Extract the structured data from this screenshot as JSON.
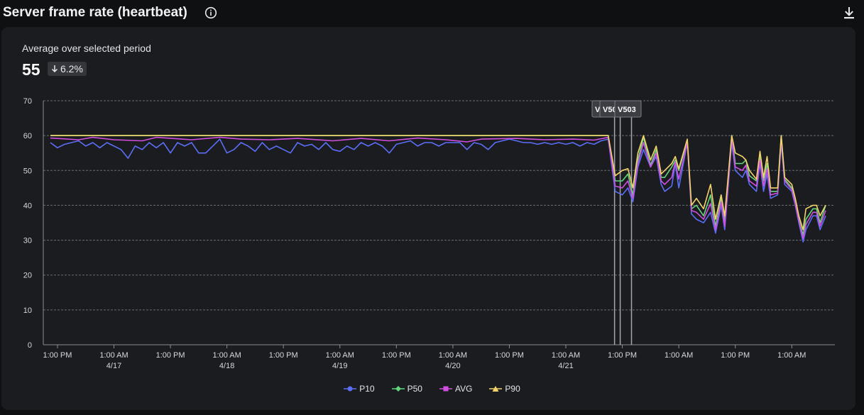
{
  "header": {
    "title": "Server frame rate (heartbeat)",
    "info_icon": "info-icon",
    "download_icon": "download-icon"
  },
  "summary": {
    "label": "Average over selected period",
    "value": "55",
    "delta": "6.2%",
    "delta_direction": "down"
  },
  "chart_data": {
    "type": "line",
    "title": "Server frame rate (heartbeat)",
    "ylim": [
      0,
      70
    ],
    "yticks": [
      0,
      10,
      20,
      30,
      40,
      50,
      60,
      70
    ],
    "grid": true,
    "legend_position": "bottom-center",
    "xlim": [
      0,
      110
    ],
    "x_ticks": [
      {
        "x": 1,
        "label": "1:00 PM",
        "sublabel": ""
      },
      {
        "x": 9,
        "label": "1:00 AM",
        "sublabel": "4/17"
      },
      {
        "x": 17,
        "label": "1:00 PM",
        "sublabel": ""
      },
      {
        "x": 25,
        "label": "1:00 AM",
        "sublabel": "4/18"
      },
      {
        "x": 33,
        "label": "1:00 PM",
        "sublabel": ""
      },
      {
        "x": 41,
        "label": "1:00 AM",
        "sublabel": "4/19"
      },
      {
        "x": 49,
        "label": "1:00 PM",
        "sublabel": ""
      },
      {
        "x": 57,
        "label": "1:00 AM",
        "sublabel": "4/20"
      },
      {
        "x": 65,
        "label": "1:00 PM",
        "sublabel": ""
      },
      {
        "x": 73,
        "label": "1:00 AM",
        "sublabel": "4/21"
      },
      {
        "x": 81,
        "label": "1:00 PM",
        "sublabel": ""
      },
      {
        "x": 89,
        "label": "1:00 AM",
        "sublabel": ""
      },
      {
        "x": 97,
        "label": "1:00 PM",
        "sublabel": ""
      },
      {
        "x": 105,
        "label": "1:00 AM",
        "sublabel": ""
      }
    ],
    "annotations": [
      {
        "x": 79.9,
        "label": "V"
      },
      {
        "x": 80.7,
        "label": "V50"
      },
      {
        "x": 82.3,
        "label": "V503"
      }
    ],
    "series": [
      {
        "name": "P10",
        "color": "#5b6ef5",
        "points": [
          [
            0,
            58
          ],
          [
            1,
            56.5
          ],
          [
            2,
            57.5
          ],
          [
            3,
            58
          ],
          [
            4,
            58.5
          ],
          [
            5,
            57
          ],
          [
            6,
            58
          ],
          [
            7,
            56.5
          ],
          [
            8,
            58
          ],
          [
            9,
            57
          ],
          [
            10,
            56
          ],
          [
            11,
            53.5
          ],
          [
            12,
            57
          ],
          [
            13,
            56
          ],
          [
            14,
            58
          ],
          [
            15,
            56.5
          ],
          [
            16,
            58
          ],
          [
            17,
            55
          ],
          [
            18,
            58
          ],
          [
            19,
            57
          ],
          [
            20,
            58
          ],
          [
            21,
            55
          ],
          [
            22,
            55
          ],
          [
            23,
            57
          ],
          [
            24,
            59
          ],
          [
            25,
            55
          ],
          [
            26,
            56
          ],
          [
            27,
            58
          ],
          [
            28,
            57
          ],
          [
            29,
            55.5
          ],
          [
            30,
            58
          ],
          [
            31,
            56
          ],
          [
            32,
            57
          ],
          [
            33,
            56
          ],
          [
            34,
            55
          ],
          [
            35,
            58
          ],
          [
            36,
            57
          ],
          [
            37,
            57.5
          ],
          [
            38,
            56
          ],
          [
            39,
            58
          ],
          [
            40,
            56
          ],
          [
            41,
            55.5
          ],
          [
            42,
            57
          ],
          [
            43,
            56
          ],
          [
            44,
            58
          ],
          [
            45,
            57
          ],
          [
            46,
            58
          ],
          [
            47,
            57
          ],
          [
            48,
            55
          ],
          [
            49,
            57.5
          ],
          [
            50,
            58
          ],
          [
            51,
            58.5
          ],
          [
            52,
            57
          ],
          [
            53,
            58
          ],
          [
            54,
            58
          ],
          [
            55,
            57
          ],
          [
            56,
            58
          ],
          [
            57,
            58
          ],
          [
            58,
            58
          ],
          [
            59,
            56
          ],
          [
            60,
            58
          ],
          [
            61,
            57.5
          ],
          [
            62,
            56
          ],
          [
            63,
            58
          ],
          [
            64,
            58.5
          ],
          [
            65,
            59
          ],
          [
            66,
            58.5
          ],
          [
            67,
            58
          ],
          [
            68,
            58
          ],
          [
            69,
            57.5
          ],
          [
            70,
            58
          ],
          [
            71,
            57.5
          ],
          [
            72,
            58
          ],
          [
            73,
            57.5
          ],
          [
            74,
            58
          ],
          [
            75,
            57
          ],
          [
            76,
            58
          ],
          [
            77,
            57.5
          ],
          [
            78,
            58.5
          ],
          [
            79,
            59
          ],
          [
            80,
            44
          ],
          [
            81,
            43
          ],
          [
            81.8,
            45
          ],
          [
            82.5,
            41
          ],
          [
            83.2,
            51
          ],
          [
            84,
            56
          ],
          [
            85,
            51
          ],
          [
            85.8,
            54
          ],
          [
            86.5,
            46
          ],
          [
            87,
            44
          ],
          [
            88,
            45.5
          ],
          [
            88.5,
            52
          ],
          [
            89,
            45
          ],
          [
            90.2,
            58
          ],
          [
            90.8,
            37.5
          ],
          [
            91.5,
            36
          ],
          [
            92.5,
            35
          ],
          [
            93.5,
            38
          ],
          [
            94.2,
            32
          ],
          [
            95,
            40
          ],
          [
            95.5,
            33
          ],
          [
            96.5,
            58
          ],
          [
            97,
            50
          ],
          [
            98,
            48
          ],
          [
            98.5,
            50
          ],
          [
            99,
            46
          ],
          [
            100,
            44
          ],
          [
            100.5,
            52
          ],
          [
            101,
            44
          ],
          [
            101.5,
            49
          ],
          [
            102,
            42
          ],
          [
            103,
            43
          ],
          [
            103.5,
            58
          ],
          [
            104,
            46
          ],
          [
            105,
            44
          ],
          [
            105.5,
            40
          ],
          [
            106,
            35
          ],
          [
            106.6,
            29.5
          ],
          [
            107,
            33
          ],
          [
            108,
            37
          ],
          [
            108.5,
            37
          ],
          [
            109,
            33
          ],
          [
            109.8,
            37
          ]
        ]
      },
      {
        "name": "P50",
        "color": "#63d67e",
        "points": [
          [
            0,
            60
          ],
          [
            79,
            60
          ],
          [
            80,
            47
          ],
          [
            81,
            47
          ],
          [
            81.8,
            49
          ],
          [
            82.5,
            43
          ],
          [
            83.2,
            53
          ],
          [
            84,
            59.5
          ],
          [
            85,
            51.5
          ],
          [
            85.8,
            56
          ],
          [
            86.5,
            48
          ],
          [
            87,
            48
          ],
          [
            88,
            51
          ],
          [
            88.5,
            53
          ],
          [
            89,
            50
          ],
          [
            90.2,
            58.5
          ],
          [
            90.8,
            39
          ],
          [
            91.5,
            40
          ],
          [
            92.5,
            37
          ],
          [
            93.5,
            43
          ],
          [
            94.2,
            34
          ],
          [
            95,
            42
          ],
          [
            95.5,
            35.5
          ],
          [
            96.5,
            60
          ],
          [
            97,
            52
          ],
          [
            98,
            52
          ],
          [
            98.5,
            53
          ],
          [
            99,
            48.5
          ],
          [
            100,
            47
          ],
          [
            100.5,
            54
          ],
          [
            101,
            47
          ],
          [
            101.5,
            52
          ],
          [
            102,
            44
          ],
          [
            103,
            44
          ],
          [
            103.5,
            60
          ],
          [
            104,
            47.5
          ],
          [
            105,
            45
          ],
          [
            105.5,
            41
          ],
          [
            106,
            36
          ],
          [
            106.6,
            31.5
          ],
          [
            107,
            36
          ],
          [
            108,
            39
          ],
          [
            108.5,
            39
          ],
          [
            109,
            35
          ],
          [
            109.8,
            40
          ]
        ]
      },
      {
        "name": "AVG",
        "color": "#d14fe0",
        "points": [
          [
            0,
            59.3
          ],
          [
            4,
            58.8
          ],
          [
            6,
            59.5
          ],
          [
            9,
            58.8
          ],
          [
            13,
            58.5
          ],
          [
            15,
            59.5
          ],
          [
            20,
            58.8
          ],
          [
            24,
            59.5
          ],
          [
            27,
            59
          ],
          [
            31,
            58.8
          ],
          [
            35,
            59.2
          ],
          [
            40,
            58.5
          ],
          [
            44,
            59.2
          ],
          [
            48,
            58.5
          ],
          [
            52,
            59.3
          ],
          [
            56,
            58.8
          ],
          [
            59,
            58.2
          ],
          [
            61,
            59
          ],
          [
            66,
            59.2
          ],
          [
            70,
            58.8
          ],
          [
            74,
            59
          ],
          [
            77,
            58.7
          ],
          [
            79,
            59.5
          ],
          [
            80,
            45.5
          ],
          [
            81,
            45
          ],
          [
            81.8,
            47
          ],
          [
            82.5,
            42
          ],
          [
            83.2,
            52
          ],
          [
            84,
            58
          ],
          [
            85,
            51
          ],
          [
            85.8,
            55
          ],
          [
            86.5,
            47
          ],
          [
            87,
            46
          ],
          [
            88,
            48
          ],
          [
            88.5,
            52.5
          ],
          [
            89,
            47.5
          ],
          [
            90.2,
            58
          ],
          [
            90.8,
            38.5
          ],
          [
            91.5,
            38
          ],
          [
            92.5,
            36
          ],
          [
            93.5,
            40.5
          ],
          [
            94.2,
            33
          ],
          [
            95,
            41
          ],
          [
            95.5,
            34
          ],
          [
            96.5,
            59
          ],
          [
            97,
            51
          ],
          [
            98,
            50
          ],
          [
            98.5,
            51.5
          ],
          [
            99,
            47
          ],
          [
            100,
            45.5
          ],
          [
            100.5,
            53
          ],
          [
            101,
            45.5
          ],
          [
            101.5,
            50.5
          ],
          [
            102,
            43
          ],
          [
            103,
            43.5
          ],
          [
            103.5,
            59
          ],
          [
            104,
            47
          ],
          [
            105,
            44.5
          ],
          [
            105.5,
            40.5
          ],
          [
            106,
            35.5
          ],
          [
            106.6,
            30.5
          ],
          [
            107,
            34.5
          ],
          [
            108,
            38
          ],
          [
            108.5,
            38
          ],
          [
            109,
            34
          ],
          [
            109.8,
            38.5
          ]
        ]
      },
      {
        "name": "P90",
        "color": "#f3d36a",
        "points": [
          [
            0,
            60
          ],
          [
            79,
            60
          ],
          [
            80,
            48.5
          ],
          [
            81,
            50
          ],
          [
            81.8,
            50.5
          ],
          [
            82.5,
            45
          ],
          [
            83.2,
            55
          ],
          [
            84,
            60
          ],
          [
            85,
            53
          ],
          [
            85.8,
            57
          ],
          [
            86.5,
            49
          ],
          [
            87,
            50
          ],
          [
            88,
            52
          ],
          [
            88.5,
            54
          ],
          [
            89,
            50.5
          ],
          [
            90.2,
            59
          ],
          [
            90.8,
            40
          ],
          [
            91.5,
            42
          ],
          [
            92.5,
            39
          ],
          [
            93.5,
            46
          ],
          [
            94.2,
            36
          ],
          [
            95,
            43
          ],
          [
            95.5,
            37
          ],
          [
            96.5,
            60
          ],
          [
            97,
            55
          ],
          [
            98,
            54
          ],
          [
            98.5,
            53
          ],
          [
            99,
            50
          ],
          [
            100,
            47.5
          ],
          [
            100.5,
            55.5
          ],
          [
            101,
            48
          ],
          [
            101.5,
            54
          ],
          [
            102,
            45
          ],
          [
            103,
            45
          ],
          [
            103.5,
            60
          ],
          [
            104,
            48
          ],
          [
            105,
            46
          ],
          [
            105.5,
            42
          ],
          [
            106,
            37
          ],
          [
            106.6,
            33
          ],
          [
            107,
            39
          ],
          [
            108,
            40
          ],
          [
            108.5,
            40
          ],
          [
            109,
            37
          ],
          [
            109.8,
            40
          ]
        ]
      }
    ]
  }
}
